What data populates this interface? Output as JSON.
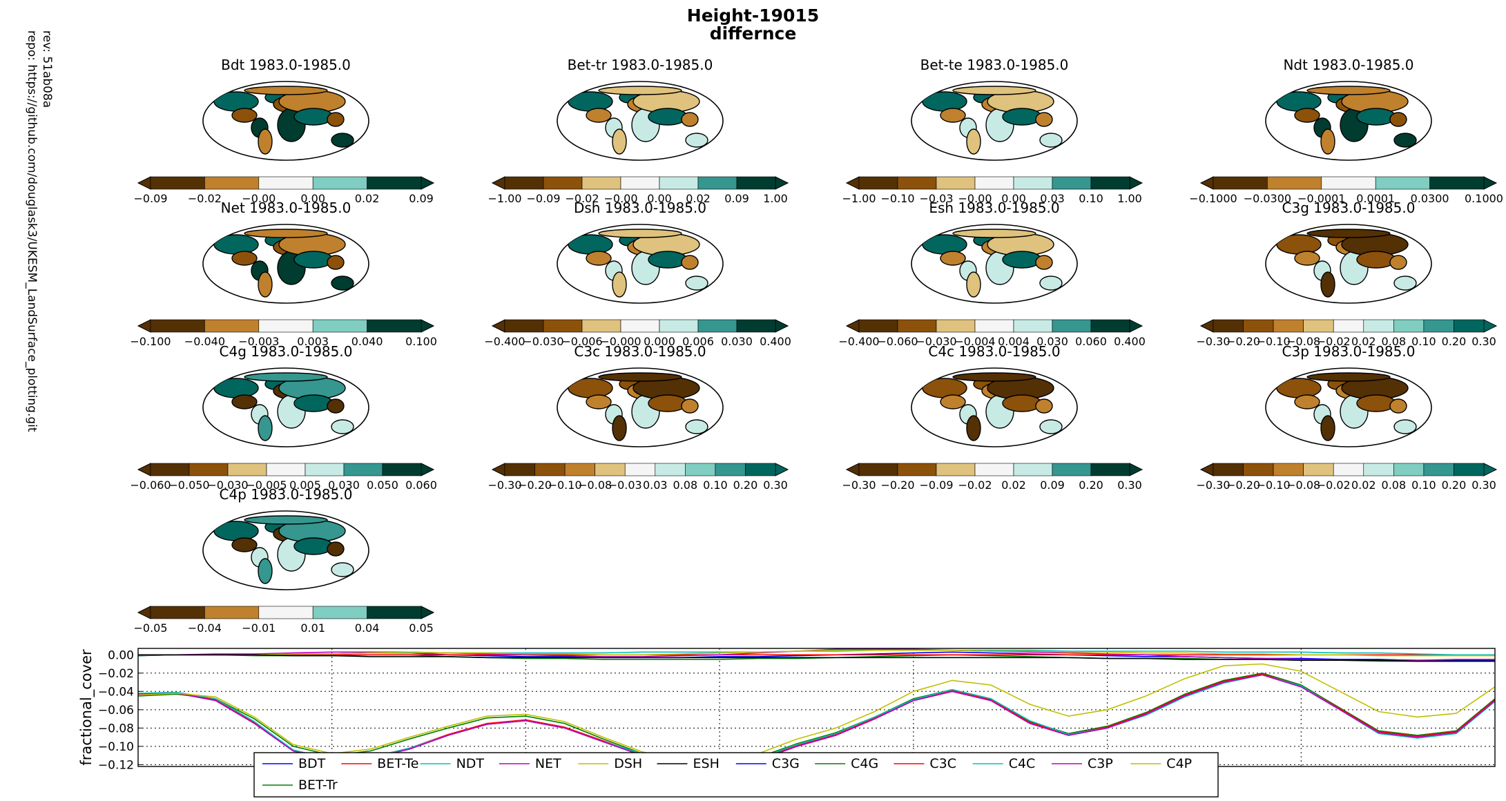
{
  "figure": {
    "title": "Height-19015",
    "subtitle": "differnce",
    "side_text": [
      "rev:  51ab08a",
      "repo: https://github.com/douglask3/UKESM_LandSurface_plotting.git"
    ]
  },
  "colors": {
    "brown_dark": "#543005",
    "brown": "#8c510a",
    "brown_mid": "#bf812d",
    "tan": "#dfc27d",
    "white": "#f5f5f5",
    "teal_light": "#c7eae5",
    "teal_mid": "#80cdc1",
    "teal": "#35978f",
    "teal_dark": "#01665e",
    "teal_darkest": "#003c30"
  },
  "maps": [
    {
      "title": "Bdt 1983.0-1985.0",
      "ticks": [
        "-0.09",
        "-0.02",
        "-0.00",
        "0.00",
        "0.02",
        "0.09"
      ],
      "style": "teal"
    },
    {
      "title": "Bet-tr 1983.0-1985.0",
      "ticks": [
        "-1.00",
        "-0.09",
        "-0.02",
        "-0.00",
        "0.00",
        "0.02",
        "0.09",
        "1.00"
      ],
      "style": "mixed"
    },
    {
      "title": "Bet-te 1983.0-1985.0",
      "ticks": [
        "-1.00",
        "-0.10",
        "-0.03",
        "-0.00",
        "0.00",
        "0.03",
        "0.10",
        "1.00"
      ],
      "style": "mixed"
    },
    {
      "title": "Ndt 1983.0-1985.0",
      "ticks": [
        "-0.1000",
        "-0.0300",
        "-0.0001",
        "0.0001",
        "0.0300",
        "0.1000"
      ],
      "style": "teal"
    },
    {
      "title": "Net 1983.0-1985.0",
      "ticks": [
        "-0.100",
        "-0.040",
        "-0.003",
        "0.003",
        "0.040",
        "0.100"
      ],
      "style": "teal"
    },
    {
      "title": "Dsh 1983.0-1985.0",
      "ticks": [
        "-0.400",
        "-0.030",
        "-0.006",
        "-0.000",
        "0.000",
        "0.006",
        "0.030",
        "0.400"
      ],
      "style": "mixed"
    },
    {
      "title": "Esh 1983.0-1985.0",
      "ticks": [
        "-0.400",
        "-0.060",
        "-0.030",
        "-0.004",
        "0.004",
        "0.030",
        "0.060",
        "0.400"
      ],
      "style": "mixed"
    },
    {
      "title": "C3g 1983.0-1985.0",
      "ticks": [
        "-0.30",
        "-0.20",
        "-0.10",
        "-0.08",
        "-0.02",
        "0.02",
        "0.08",
        "0.10",
        "0.20",
        "0.30"
      ],
      "style": "brown"
    },
    {
      "title": "C4g 1983.0-1985.0",
      "ticks": [
        "-0.060",
        "-0.050",
        "-0.030",
        "-0.005",
        "0.005",
        "0.030",
        "0.050",
        "0.060"
      ],
      "style": "c4g"
    },
    {
      "title": "C3c 1983.0-1985.0",
      "ticks": [
        "-0.30",
        "-0.20",
        "-0.10",
        "-0.08",
        "-0.03",
        "0.03",
        "0.08",
        "0.10",
        "0.20",
        "0.30"
      ],
      "style": "brown"
    },
    {
      "title": "C4c 1983.0-1985.0",
      "ticks": [
        "-0.30",
        "-0.20",
        "-0.09",
        "-0.02",
        "0.02",
        "0.09",
        "0.20",
        "0.30"
      ],
      "style": "brown"
    },
    {
      "title": "C3p 1983.0-1985.0",
      "ticks": [
        "-0.30",
        "-0.20",
        "-0.10",
        "-0.08",
        "-0.02",
        "0.02",
        "0.08",
        "0.10",
        "0.20",
        "0.30"
      ],
      "style": "brown"
    },
    {
      "title": "C4p 1983.0-1985.0",
      "ticks": [
        "-0.05",
        "-0.04",
        "-0.01",
        "0.01",
        "0.04",
        "0.05"
      ],
      "style": "c4g"
    }
  ],
  "chart_data": {
    "type": "line",
    "title": "",
    "xlabel": "",
    "ylabel": "fractional_cover",
    "ylim": [
      -0.122,
      0.007
    ],
    "yticks": [
      0.0,
      -0.02,
      -0.04,
      -0.06,
      -0.08,
      -0.1,
      -0.12
    ],
    "ytick_labels": [
      "0.00",
      "−0.02",
      "−0.04",
      "−0.06",
      "−0.08",
      "−0.10",
      "−0.12"
    ],
    "xlim": [
      0,
      35
    ],
    "grid": true,
    "legend_position": "bottom-center",
    "x": [
      0,
      1,
      2,
      3,
      4,
      5,
      6,
      7,
      8,
      9,
      10,
      11,
      12,
      13,
      14,
      15,
      16,
      17,
      18,
      19,
      20,
      21,
      22,
      23,
      24,
      25,
      26,
      27,
      28,
      29,
      30,
      31,
      32,
      33,
      34,
      35
    ],
    "series": [
      {
        "name": "BDT",
        "color": "#0000ff",
        "values": [
          -0.001,
          0.0,
          0.0,
          0.0,
          0.0,
          0.001,
          0.002,
          0.002,
          0.0,
          -0.001,
          -0.002,
          -0.002,
          -0.003,
          -0.003,
          -0.003,
          -0.002,
          -0.002,
          -0.001,
          0.0,
          0.001,
          0.002,
          0.003,
          0.002,
          0.001,
          0.0,
          -0.001,
          -0.002,
          -0.002,
          -0.003,
          -0.004,
          -0.004,
          -0.005,
          -0.005,
          -0.006,
          -0.006,
          -0.006
        ]
      },
      {
        "name": "BET-Tr",
        "color": "#008000",
        "values": [
          -0.001,
          0.0,
          0.0,
          -0.001,
          -0.001,
          -0.001,
          0.0,
          0.0,
          -0.002,
          -0.003,
          -0.004,
          -0.004,
          -0.005,
          -0.005,
          -0.005,
          -0.005,
          -0.004,
          -0.004,
          -0.003,
          -0.002,
          -0.001,
          0.0,
          -0.001,
          -0.002,
          -0.003,
          -0.004,
          -0.004,
          -0.004,
          -0.005,
          -0.005,
          -0.006,
          -0.006,
          -0.007,
          -0.007,
          -0.007,
          -0.007
        ]
      },
      {
        "name": "BET-Te",
        "color": "#ff0000",
        "values": [
          0.0,
          0.0,
          0.0,
          0.0,
          0.0,
          0.0,
          0.0,
          0.0,
          0.0,
          0.0,
          0.0,
          0.0,
          0.0,
          0.0,
          0.0,
          0.0,
          0.0,
          0.0,
          0.0,
          0.0,
          0.0,
          0.0,
          0.0,
          0.0,
          0.0,
          0.0,
          0.0,
          0.0,
          0.0,
          0.0,
          0.0,
          0.0,
          0.0,
          0.0,
          0.0,
          0.0
        ]
      },
      {
        "name": "NDT",
        "color": "#00bfbf",
        "values": [
          0.0,
          0.0,
          0.0,
          0.0,
          0.001,
          0.001,
          0.002,
          0.002,
          0.002,
          0.002,
          0.002,
          0.002,
          0.002,
          0.003,
          0.003,
          0.003,
          0.003,
          0.004,
          0.004,
          0.005,
          0.005,
          0.005,
          0.005,
          0.005,
          0.004,
          0.004,
          0.004,
          0.004,
          0.003,
          0.003,
          0.003,
          0.002,
          0.002,
          0.001,
          0.0,
          0.0
        ]
      },
      {
        "name": "NET",
        "color": "#bf00bf",
        "values": [
          0.0,
          0.0,
          0.001,
          0.001,
          0.002,
          0.003,
          0.003,
          0.003,
          0.002,
          0.001,
          0.0,
          -0.001,
          -0.002,
          -0.002,
          -0.001,
          0.0,
          0.002,
          0.004,
          0.006,
          0.006,
          0.006,
          0.005,
          0.004,
          0.003,
          0.002,
          0.001,
          0.0,
          -0.002,
          -0.003,
          -0.004,
          -0.005,
          -0.006,
          -0.006,
          -0.006,
          -0.005,
          -0.005
        ]
      },
      {
        "name": "DSH",
        "color": "#bfbf00",
        "values": [
          0.0,
          0.0,
          0.0,
          0.0,
          0.001,
          0.001,
          0.002,
          0.003,
          0.002,
          0.002,
          0.001,
          0.001,
          0.0,
          0.0,
          0.001,
          0.002,
          0.003,
          0.004,
          0.005,
          0.005,
          0.005,
          0.005,
          0.004,
          0.004,
          0.003,
          0.003,
          0.002,
          0.002,
          0.001,
          0.001,
          0.0,
          0.0,
          -0.001,
          -0.001,
          -0.001,
          -0.001
        ]
      },
      {
        "name": "ESH",
        "color": "#000000",
        "values": [
          0.0,
          0.0,
          0.0,
          0.0,
          -0.001,
          -0.001,
          -0.002,
          -0.002,
          -0.002,
          -0.003,
          -0.003,
          -0.003,
          -0.003,
          -0.003,
          -0.003,
          -0.003,
          -0.003,
          -0.003,
          -0.003,
          -0.003,
          -0.003,
          -0.003,
          -0.003,
          -0.003,
          -0.003,
          -0.004,
          -0.004,
          -0.005,
          -0.005,
          -0.005,
          -0.006,
          -0.006,
          -0.006,
          -0.007,
          -0.007,
          -0.007
        ]
      },
      {
        "name": "C3G",
        "color": "#0000ff",
        "values": [
          -0.043,
          -0.042,
          -0.05,
          -0.075,
          -0.105,
          -0.115,
          -0.113,
          -0.103,
          -0.088,
          -0.076,
          -0.072,
          -0.08,
          -0.095,
          -0.11,
          -0.12,
          -0.125,
          -0.115,
          -0.1,
          -0.088,
          -0.07,
          -0.05,
          -0.04,
          -0.05,
          -0.075,
          -0.088,
          -0.08,
          -0.065,
          -0.045,
          -0.03,
          -0.022,
          -0.035,
          -0.06,
          -0.085,
          -0.09,
          -0.085,
          -0.05
        ]
      },
      {
        "name": "C4G",
        "color": "#008000",
        "values": [
          -0.045,
          -0.043,
          -0.048,
          -0.07,
          -0.1,
          -0.11,
          -0.105,
          -0.092,
          -0.08,
          -0.069,
          -0.067,
          -0.075,
          -0.092,
          -0.108,
          -0.118,
          -0.122,
          -0.112,
          -0.097,
          -0.085,
          -0.068,
          -0.048,
          -0.038,
          -0.048,
          -0.073,
          -0.086,
          -0.078,
          -0.063,
          -0.043,
          -0.028,
          -0.02,
          -0.033,
          -0.058,
          -0.083,
          -0.088,
          -0.083,
          -0.048
        ]
      },
      {
        "name": "C3C",
        "color": "#ff0000",
        "values": [
          -0.043,
          -0.042,
          -0.049,
          -0.074,
          -0.104,
          -0.114,
          -0.112,
          -0.102,
          -0.087,
          -0.075,
          -0.071,
          -0.079,
          -0.094,
          -0.109,
          -0.119,
          -0.124,
          -0.114,
          -0.099,
          -0.087,
          -0.069,
          -0.049,
          -0.039,
          -0.049,
          -0.074,
          -0.087,
          -0.079,
          -0.064,
          -0.044,
          -0.029,
          -0.021,
          -0.034,
          -0.059,
          -0.084,
          -0.089,
          -0.084,
          -0.049
        ]
      },
      {
        "name": "C4C",
        "color": "#00bfbf",
        "values": [
          -0.042,
          -0.041,
          -0.048,
          -0.073,
          -0.104,
          -0.114,
          -0.112,
          -0.102,
          -0.088,
          -0.076,
          -0.072,
          -0.08,
          -0.095,
          -0.108,
          -0.118,
          -0.122,
          -0.113,
          -0.098,
          -0.086,
          -0.068,
          -0.049,
          -0.038,
          -0.048,
          -0.072,
          -0.087,
          -0.08,
          -0.066,
          -0.046,
          -0.031,
          -0.022,
          -0.034,
          -0.06,
          -0.086,
          -0.091,
          -0.086,
          -0.051
        ]
      },
      {
        "name": "C3P",
        "color": "#bf00bf",
        "values": [
          -0.043,
          -0.042,
          -0.05,
          -0.075,
          -0.105,
          -0.115,
          -0.113,
          -0.103,
          -0.088,
          -0.076,
          -0.072,
          -0.08,
          -0.095,
          -0.11,
          -0.12,
          -0.125,
          -0.115,
          -0.1,
          -0.088,
          -0.07,
          -0.05,
          -0.04,
          -0.05,
          -0.075,
          -0.088,
          -0.08,
          -0.065,
          -0.045,
          -0.03,
          -0.022,
          -0.035,
          -0.06,
          -0.085,
          -0.09,
          -0.085,
          -0.05
        ]
      },
      {
        "name": "C4P",
        "color": "#bfbf00",
        "values": [
          -0.044,
          -0.042,
          -0.046,
          -0.068,
          -0.098,
          -0.108,
          -0.103,
          -0.09,
          -0.078,
          -0.067,
          -0.065,
          -0.073,
          -0.09,
          -0.106,
          -0.115,
          -0.118,
          -0.108,
          -0.092,
          -0.08,
          -0.062,
          -0.04,
          -0.028,
          -0.033,
          -0.054,
          -0.067,
          -0.06,
          -0.045,
          -0.026,
          -0.012,
          -0.01,
          -0.018,
          -0.04,
          -0.062,
          -0.068,
          -0.064,
          -0.035
        ]
      }
    ]
  }
}
